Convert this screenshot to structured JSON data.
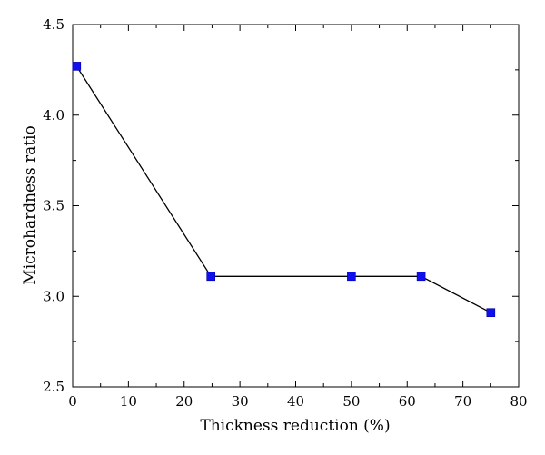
{
  "chart_data": {
    "type": "line",
    "title": "",
    "xlabel": "Thickness reduction (%)",
    "ylabel": "Microhardness ratio",
    "xlim": [
      0,
      80
    ],
    "ylim": [
      2.5,
      4.5
    ],
    "x_ticks": [
      "0",
      "10",
      "20",
      "30",
      "40",
      "50",
      "60",
      "70",
      "80"
    ],
    "y_ticks": [
      "2.5",
      "3.0",
      "3.5",
      "4.0",
      "4.5"
    ],
    "grid": false,
    "legend": "none",
    "series": [
      {
        "x": [
          0.7,
          24.8,
          50.0,
          62.5,
          75.0
        ],
        "values": [
          4.27,
          3.11,
          3.11,
          3.11,
          2.91
        ],
        "marker": "square",
        "marker_color": "#1010ee",
        "line_color": "#000000"
      }
    ]
  }
}
